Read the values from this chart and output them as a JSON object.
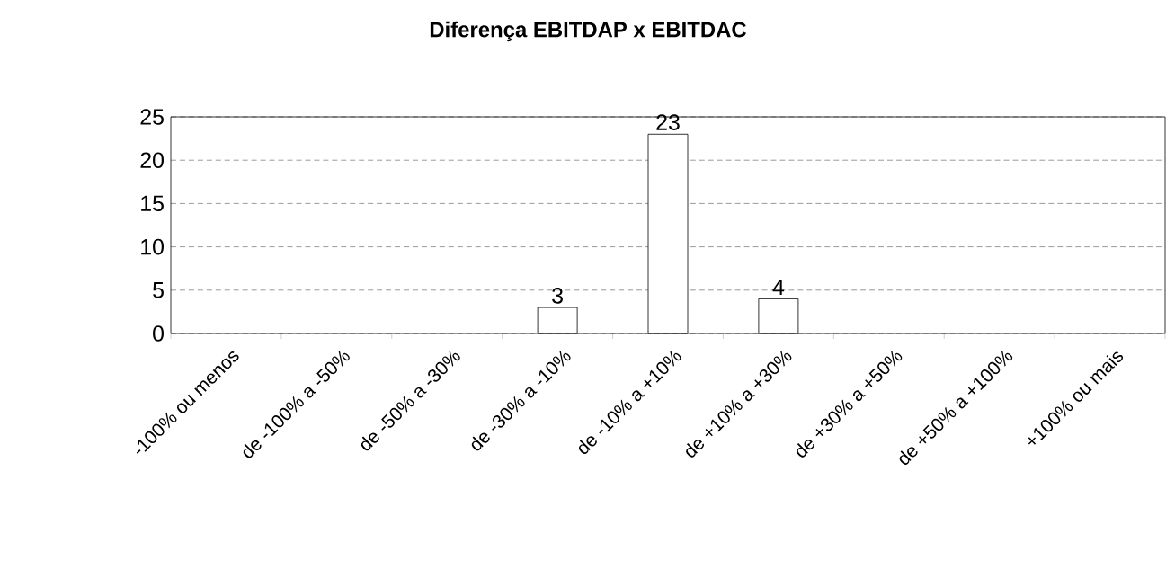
{
  "chart_data": {
    "type": "bar",
    "title": "Diferença EBITDAP x EBITDAC",
    "categories": [
      "-100% ou menos",
      "de -100% a -50%",
      "de -50% a -30%",
      "de -30% a -10%",
      "de -10% a +10%",
      "de +10% a +30%",
      "de +30% a +50%",
      "de +50% a +100%",
      "+100% ou mais"
    ],
    "values": [
      0,
      0,
      0,
      3,
      23,
      4,
      0,
      0,
      0
    ],
    "value_labels": [
      null,
      null,
      null,
      "3",
      "23",
      "4",
      null,
      null,
      null
    ],
    "color": "#ffffff",
    "ylim": [
      0,
      25
    ],
    "yticks": [
      0,
      5,
      10,
      15,
      20,
      25
    ],
    "grid": "y"
  }
}
